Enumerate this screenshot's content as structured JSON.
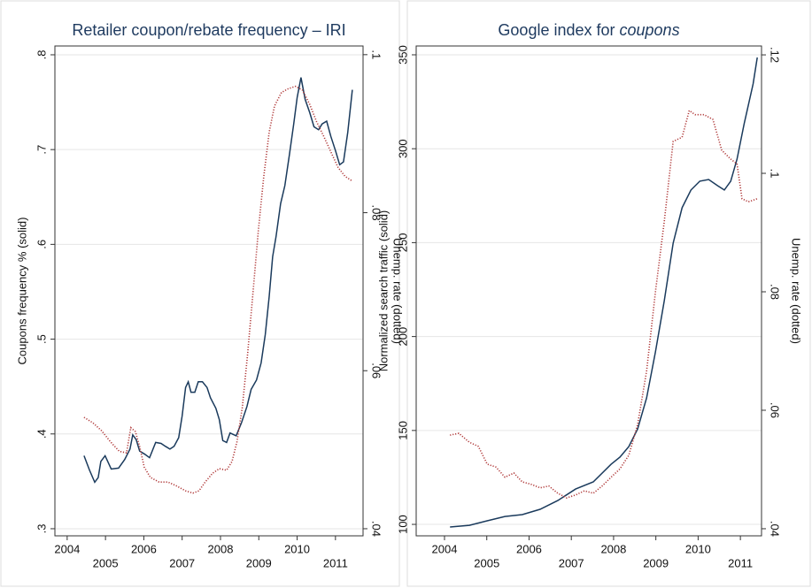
{
  "chart_data": [
    {
      "type": "line",
      "title": "Retailer coupon/rebate frequency – IRI",
      "y_label": "Coupons frequency % (solid)",
      "y2_label": "Unemp. rate (dotted)",
      "xlim": [
        2003.68,
        2011.72
      ],
      "xticks": [
        2004,
        2005,
        2006,
        2007,
        2008,
        2009,
        2010,
        2011
      ],
      "ylim": [
        0.2925,
        0.8093
      ],
      "yticks": [
        {
          "value": 0.3,
          "label": ".3"
        },
        {
          "value": 0.4,
          "label": ".4"
        },
        {
          "value": 0.5,
          "label": ".5"
        },
        {
          "value": 0.6,
          "label": ".6"
        },
        {
          "value": 0.7,
          "label": ".7"
        },
        {
          "value": 0.8,
          "label": ".8"
        }
      ],
      "y2lim": [
        0.0391,
        0.1011
      ],
      "y2ticks": [
        {
          "value": 0.04,
          "label": ".04"
        },
        {
          "value": 0.06,
          "label": ".06"
        },
        {
          "value": 0.08,
          "label": ".08"
        },
        {
          "value": 0.1,
          "label": ".1"
        }
      ],
      "grid": true,
      "series": [
        {
          "style": "solid",
          "color": "#1a3a5c",
          "x": [
            2004.44,
            2004.58,
            2004.72,
            2004.81,
            2004.88,
            2004.99,
            2005.15,
            2005.34,
            2005.5,
            2005.64,
            2005.71,
            2005.8,
            2005.89,
            2006.01,
            2006.15,
            2006.31,
            2006.45,
            2006.56,
            2006.68,
            2006.79,
            2006.91,
            2007.0,
            2007.09,
            2007.16,
            2007.23,
            2007.33,
            2007.42,
            2007.53,
            2007.65,
            2007.74,
            2007.88,
            2007.97,
            2008.06,
            2008.16,
            2008.25,
            2008.41,
            2008.55,
            2008.69,
            2008.8,
            2008.94,
            2009.06,
            2009.17,
            2009.27,
            2009.36,
            2009.45,
            2009.57,
            2009.68,
            2009.8,
            2009.91,
            2010.0,
            2010.1,
            2010.21,
            2010.33,
            2010.44,
            2010.56,
            2010.65,
            2010.77,
            2010.88,
            2011.0,
            2011.11,
            2011.21,
            2011.32,
            2011.44
          ],
          "values": [
            0.377,
            0.362,
            0.349,
            0.354,
            0.371,
            0.377,
            0.363,
            0.364,
            0.373,
            0.384,
            0.399,
            0.394,
            0.382,
            0.379,
            0.375,
            0.391,
            0.39,
            0.387,
            0.384,
            0.387,
            0.396,
            0.419,
            0.449,
            0.455,
            0.444,
            0.444,
            0.455,
            0.455,
            0.449,
            0.438,
            0.427,
            0.415,
            0.393,
            0.391,
            0.401,
            0.398,
            0.412,
            0.429,
            0.447,
            0.457,
            0.475,
            0.505,
            0.545,
            0.587,
            0.608,
            0.643,
            0.662,
            0.695,
            0.727,
            0.755,
            0.776,
            0.753,
            0.739,
            0.724,
            0.721,
            0.727,
            0.73,
            0.714,
            0.699,
            0.684,
            0.687,
            0.718,
            0.763
          ]
        },
        {
          "style": "dotted",
          "color": "#b03a3a",
          "axis": "y2",
          "x": [
            2004.44,
            2004.67,
            2004.9,
            2005.13,
            2005.36,
            2005.55,
            2005.66,
            2005.78,
            2005.89,
            2006.01,
            2006.17,
            2006.4,
            2006.63,
            2006.86,
            2007.09,
            2007.28,
            2007.44,
            2007.6,
            2007.79,
            2007.97,
            2008.16,
            2008.3,
            2008.43,
            2008.57,
            2008.71,
            2008.85,
            2008.99,
            2009.13,
            2009.27,
            2009.41,
            2009.59,
            2009.77,
            2009.96,
            2010.14,
            2010.33,
            2010.51,
            2010.7,
            2010.88,
            2011.07,
            2011.25,
            2011.44
          ],
          "values": [
            0.0541,
            0.0534,
            0.0524,
            0.051,
            0.0498,
            0.0496,
            0.0528,
            0.0523,
            0.0504,
            0.0478,
            0.0465,
            0.0459,
            0.0459,
            0.0454,
            0.0448,
            0.0445,
            0.0448,
            0.0459,
            0.047,
            0.0476,
            0.0474,
            0.0485,
            0.051,
            0.0554,
            0.0622,
            0.07,
            0.0778,
            0.0846,
            0.0902,
            0.0935,
            0.0952,
            0.0957,
            0.096,
            0.0955,
            0.0937,
            0.0915,
            0.0896,
            0.0877,
            0.0857,
            0.0846,
            0.084
          ]
        }
      ]
    },
    {
      "type": "line",
      "title": "Google index for ",
      "title_italic": "coupons",
      "y_label": "Normalized search traffic (solid)",
      "y2_label": "Unemp. rate (dotted)",
      "xlim": [
        2003.33,
        2011.5
      ],
      "xticks": [
        2004,
        2005,
        2006,
        2007,
        2008,
        2009,
        2010,
        2011
      ],
      "ylim": [
        93.9,
        354.7
      ],
      "yticks": [
        100,
        150,
        200,
        250,
        300,
        350
      ],
      "y2lim": [
        0.0388,
        0.1215
      ],
      "y2ticks": [
        {
          "value": 0.04,
          "label": ".04"
        },
        {
          "value": 0.06,
          "label": ".06"
        },
        {
          "value": 0.08,
          "label": ".08"
        },
        {
          "value": 0.1,
          "label": ".1"
        },
        {
          "value": 0.12,
          "label": ".12"
        }
      ],
      "grid": true,
      "series": [
        {
          "style": "solid",
          "color": "#1a3a5c",
          "x": [
            2004.13,
            2004.59,
            2005.01,
            2005.43,
            2005.84,
            2006.26,
            2006.68,
            2007.1,
            2007.52,
            2007.94,
            2008.15,
            2008.36,
            2008.57,
            2008.78,
            2008.99,
            2009.2,
            2009.41,
            2009.62,
            2009.83,
            2010.04,
            2010.25,
            2010.46,
            2010.62,
            2010.77,
            2010.92,
            2011.09,
            2011.3,
            2011.4
          ],
          "values": [
            98.6,
            99.5,
            101.9,
            104.2,
            105.2,
            108.0,
            112.7,
            118.8,
            122.6,
            132.0,
            135.8,
            141.4,
            150.8,
            167.3,
            191.8,
            219.1,
            249.7,
            268.6,
            278.0,
            282.7,
            283.6,
            280.3,
            278.0,
            282.7,
            294.4,
            313.3,
            334.5,
            348.6
          ]
        },
        {
          "style": "dotted",
          "color": "#b03a3a",
          "axis": "y2",
          "x": [
            2004.13,
            2004.34,
            2004.59,
            2004.8,
            2005.01,
            2005.22,
            2005.43,
            2005.64,
            2005.84,
            2006.05,
            2006.26,
            2006.47,
            2006.68,
            2006.89,
            2007.1,
            2007.31,
            2007.52,
            2007.73,
            2007.94,
            2008.15,
            2008.36,
            2008.57,
            2008.78,
            2008.99,
            2009.2,
            2009.41,
            2009.62,
            2009.79,
            2009.93,
            2010.14,
            2010.35,
            2010.56,
            2010.77,
            2010.92,
            2011.04,
            2011.19,
            2011.4
          ],
          "values": [
            0.0558,
            0.0561,
            0.0546,
            0.0539,
            0.0509,
            0.0504,
            0.0487,
            0.0494,
            0.0479,
            0.0475,
            0.0469,
            0.0472,
            0.046,
            0.0452,
            0.0457,
            0.0464,
            0.046,
            0.0472,
            0.0487,
            0.0501,
            0.0524,
            0.0576,
            0.0666,
            0.08,
            0.0919,
            0.1054,
            0.1061,
            0.1106,
            0.1099,
            0.1099,
            0.1091,
            0.1039,
            0.1024,
            0.1016,
            0.0957,
            0.0952,
            0.0957
          ]
        }
      ]
    }
  ]
}
